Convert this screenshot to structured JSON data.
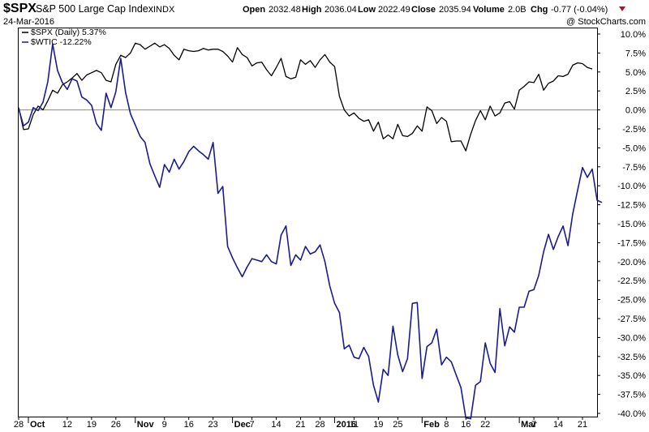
{
  "header": {
    "symbol": "$SPX",
    "name": "S&P 500 Large Cap Index",
    "exchange": "INDX",
    "date": "24-Mar-2016",
    "watermark": "@ StockCharts.com",
    "open_label": "Open",
    "open_value": "2032.48",
    "high_label": "High",
    "high_value": "2036.04",
    "low_label": "Low",
    "low_value": "2022.49",
    "close_label": "Close",
    "close_value": "2035.94",
    "volume_label": "Volume",
    "volume_value": "2.0B",
    "chg_label": "Chg",
    "chg_value": "-0.77 (-0.04%)",
    "chg_color": "#9b1c31"
  },
  "legend": [
    {
      "text": "$SPX (Daily) 5.37%",
      "color": "#000000"
    },
    {
      "text": "$WTIC -12.22%",
      "color": "#1b1b8f"
    }
  ],
  "chart_data": {
    "type": "line",
    "title": "$SPX S&P 500 Large Cap Index INDX",
    "ylabel": "",
    "xlabel": "",
    "y_unit": "percent",
    "ylim": [
      -40,
      10
    ],
    "y_ticks": [
      10,
      7.5,
      5,
      2.5,
      0,
      -2.5,
      -5,
      -7.5,
      -10,
      -12.5,
      -15,
      -17.5,
      -20,
      -22.5,
      -25,
      -27.5,
      -30,
      -32.5,
      -35,
      -37.5,
      -40
    ],
    "y_tick_labels": [
      "10.0%",
      "7.5%",
      "5.0%",
      "2.5%",
      "0.0%",
      "-2.5%",
      "-5.0%",
      "-7.5%",
      "-10.0%",
      "-12.5%",
      "-15.0%",
      "-17.5%",
      "-20.0%",
      "-22.5%",
      "-25.0%",
      "-27.5%",
      "-30.0%",
      "-32.5%",
      "-35.0%",
      "-37.5%",
      "-40.0%"
    ],
    "x_ticks": [
      {
        "label": "28",
        "i": 0,
        "major": false
      },
      {
        "label": "Oct",
        "i": 2,
        "major": true
      },
      {
        "label": "12",
        "i": 10,
        "major": false
      },
      {
        "label": "19",
        "i": 15,
        "major": false
      },
      {
        "label": "26",
        "i": 20,
        "major": false
      },
      {
        "label": "Nov",
        "i": 24,
        "major": true
      },
      {
        "label": "9",
        "i": 30,
        "major": false
      },
      {
        "label": "16",
        "i": 35,
        "major": false
      },
      {
        "label": "23",
        "i": 40,
        "major": false
      },
      {
        "label": "Dec",
        "i": 44,
        "major": true
      },
      {
        "label": "7",
        "i": 48,
        "major": false
      },
      {
        "label": "14",
        "i": 53,
        "major": false
      },
      {
        "label": "21",
        "i": 58,
        "major": false
      },
      {
        "label": "28",
        "i": 62,
        "major": false
      },
      {
        "label": "2016",
        "i": 65,
        "major": true
      },
      {
        "label": "11",
        "i": 69,
        "major": false
      },
      {
        "label": "19",
        "i": 74,
        "major": false
      },
      {
        "label": "25",
        "i": 78,
        "major": false
      },
      {
        "label": "Feb",
        "i": 83,
        "major": true
      },
      {
        "label": "8",
        "i": 88,
        "major": false
      },
      {
        "label": "16",
        "i": 92,
        "major": false
      },
      {
        "label": "22",
        "i": 96,
        "major": false
      },
      {
        "label": "Mar",
        "i": 103,
        "major": true
      },
      {
        "label": "7",
        "i": 106,
        "major": false
      },
      {
        "label": "14",
        "i": 111,
        "major": false
      },
      {
        "label": "21",
        "i": 116,
        "major": false
      }
    ],
    "x_max_index": 119,
    "zero_line": 0,
    "series": [
      {
        "name": "$SPX (Daily)",
        "color": "#000000",
        "values": [
          0.3,
          -2.6,
          -2.5,
          -0.6,
          0.5,
          0.0,
          1.2,
          2.6,
          2.2,
          3.3,
          3.7,
          4.2,
          4.8,
          3.9,
          4.6,
          4.9,
          5.2,
          4.9,
          3.9,
          3.7,
          6.0,
          7.2,
          6.9,
          7.5,
          8.8,
          8.6,
          8.0,
          8.4,
          8.8,
          8.3,
          8.6,
          8.1,
          7.2,
          6.6,
          8.0,
          7.8,
          7.7,
          7.8,
          8.1,
          7.9,
          8.0,
          8.0,
          7.7,
          7.1,
          6.3,
          8.2,
          7.3,
          6.9,
          5.8,
          6.2,
          6.3,
          5.3,
          4.5,
          5.6,
          6.8,
          4.4,
          4.1,
          4.3,
          6.6,
          6.0,
          6.5,
          5.6,
          6.6,
          7.3,
          6.3,
          5.7,
          1.8,
          0.0,
          -0.8,
          -0.4,
          -1.1,
          -1.5,
          -1.3,
          -2.8,
          -1.6,
          -3.8,
          -3.3,
          -3.8,
          -1.9,
          -3.4,
          -3.5,
          -3.1,
          -2.1,
          -2.8,
          0.4,
          -0.1,
          -1.8,
          -1.0,
          -1.5,
          -4.2,
          -4.1,
          -4.1,
          -5.4,
          -3.2,
          -1.4,
          -0.1,
          -1.3,
          0.5,
          -0.8,
          -0.4,
          0.9,
          1.1,
          0.1,
          2.6,
          3.1,
          3.7,
          3.6,
          4.7,
          2.6,
          3.5,
          3.8,
          4.5,
          4.4,
          4.7,
          5.9,
          6.2,
          6.1,
          5.6,
          5.4
        ]
      },
      {
        "name": "$WTIC",
        "color": "#1b1b8f",
        "values": [
          0.2,
          -2.1,
          -1.6,
          0.3,
          -0.1,
          1.0,
          3.7,
          8.7,
          5.2,
          3.6,
          2.7,
          4.1,
          3.8,
          1.7,
          1.3,
          0.6,
          -1.8,
          -2.7,
          2.2,
          0.3,
          2.4,
          6.8,
          2.3,
          -0.5,
          -2.0,
          -3.5,
          -4.3,
          -7.1,
          -8.7,
          -10.2,
          -7.2,
          -8.2,
          -6.5,
          -7.8,
          -6.8,
          -5.5,
          -4.8,
          -5.4,
          -5.9,
          -6.5,
          -4.3,
          -11.0,
          -10.1,
          -18.0,
          -19.5,
          -20.8,
          -22.0,
          -20.7,
          -19.6,
          -19.8,
          -20.0,
          -19.1,
          -20.0,
          -20.3,
          -16.5,
          -15.3,
          -20.5,
          -19.1,
          -19.8,
          -18.0,
          -19.0,
          -18.7,
          -17.8,
          -20.0,
          -23.2,
          -25.5,
          -26.7,
          -31.5,
          -31.0,
          -32.6,
          -32.8,
          -31.3,
          -32.5,
          -36.3,
          -38.5,
          -34.2,
          -35.0,
          -28.5,
          -32.3,
          -34.5,
          -32.8,
          -25.5,
          -25.4,
          -35.4,
          -31.2,
          -30.7,
          -28.9,
          -33.6,
          -32.6,
          -33.2,
          -34.9,
          -36.6,
          -40.6,
          -40.7,
          -36.3,
          -35.8,
          -30.7,
          -33.4,
          -34.6,
          -26.2,
          -31.1,
          -28.6,
          -29.3,
          -26.0,
          -26.0,
          -23.9,
          -23.7,
          -21.8,
          -18.7,
          -16.4,
          -18.4,
          -16.7,
          -15.3,
          -17.9,
          -13.7,
          -10.6,
          -7.6,
          -8.9,
          -7.8,
          -11.9,
          -12.2
        ]
      }
    ],
    "grid": false,
    "legend_position": "top-left"
  }
}
